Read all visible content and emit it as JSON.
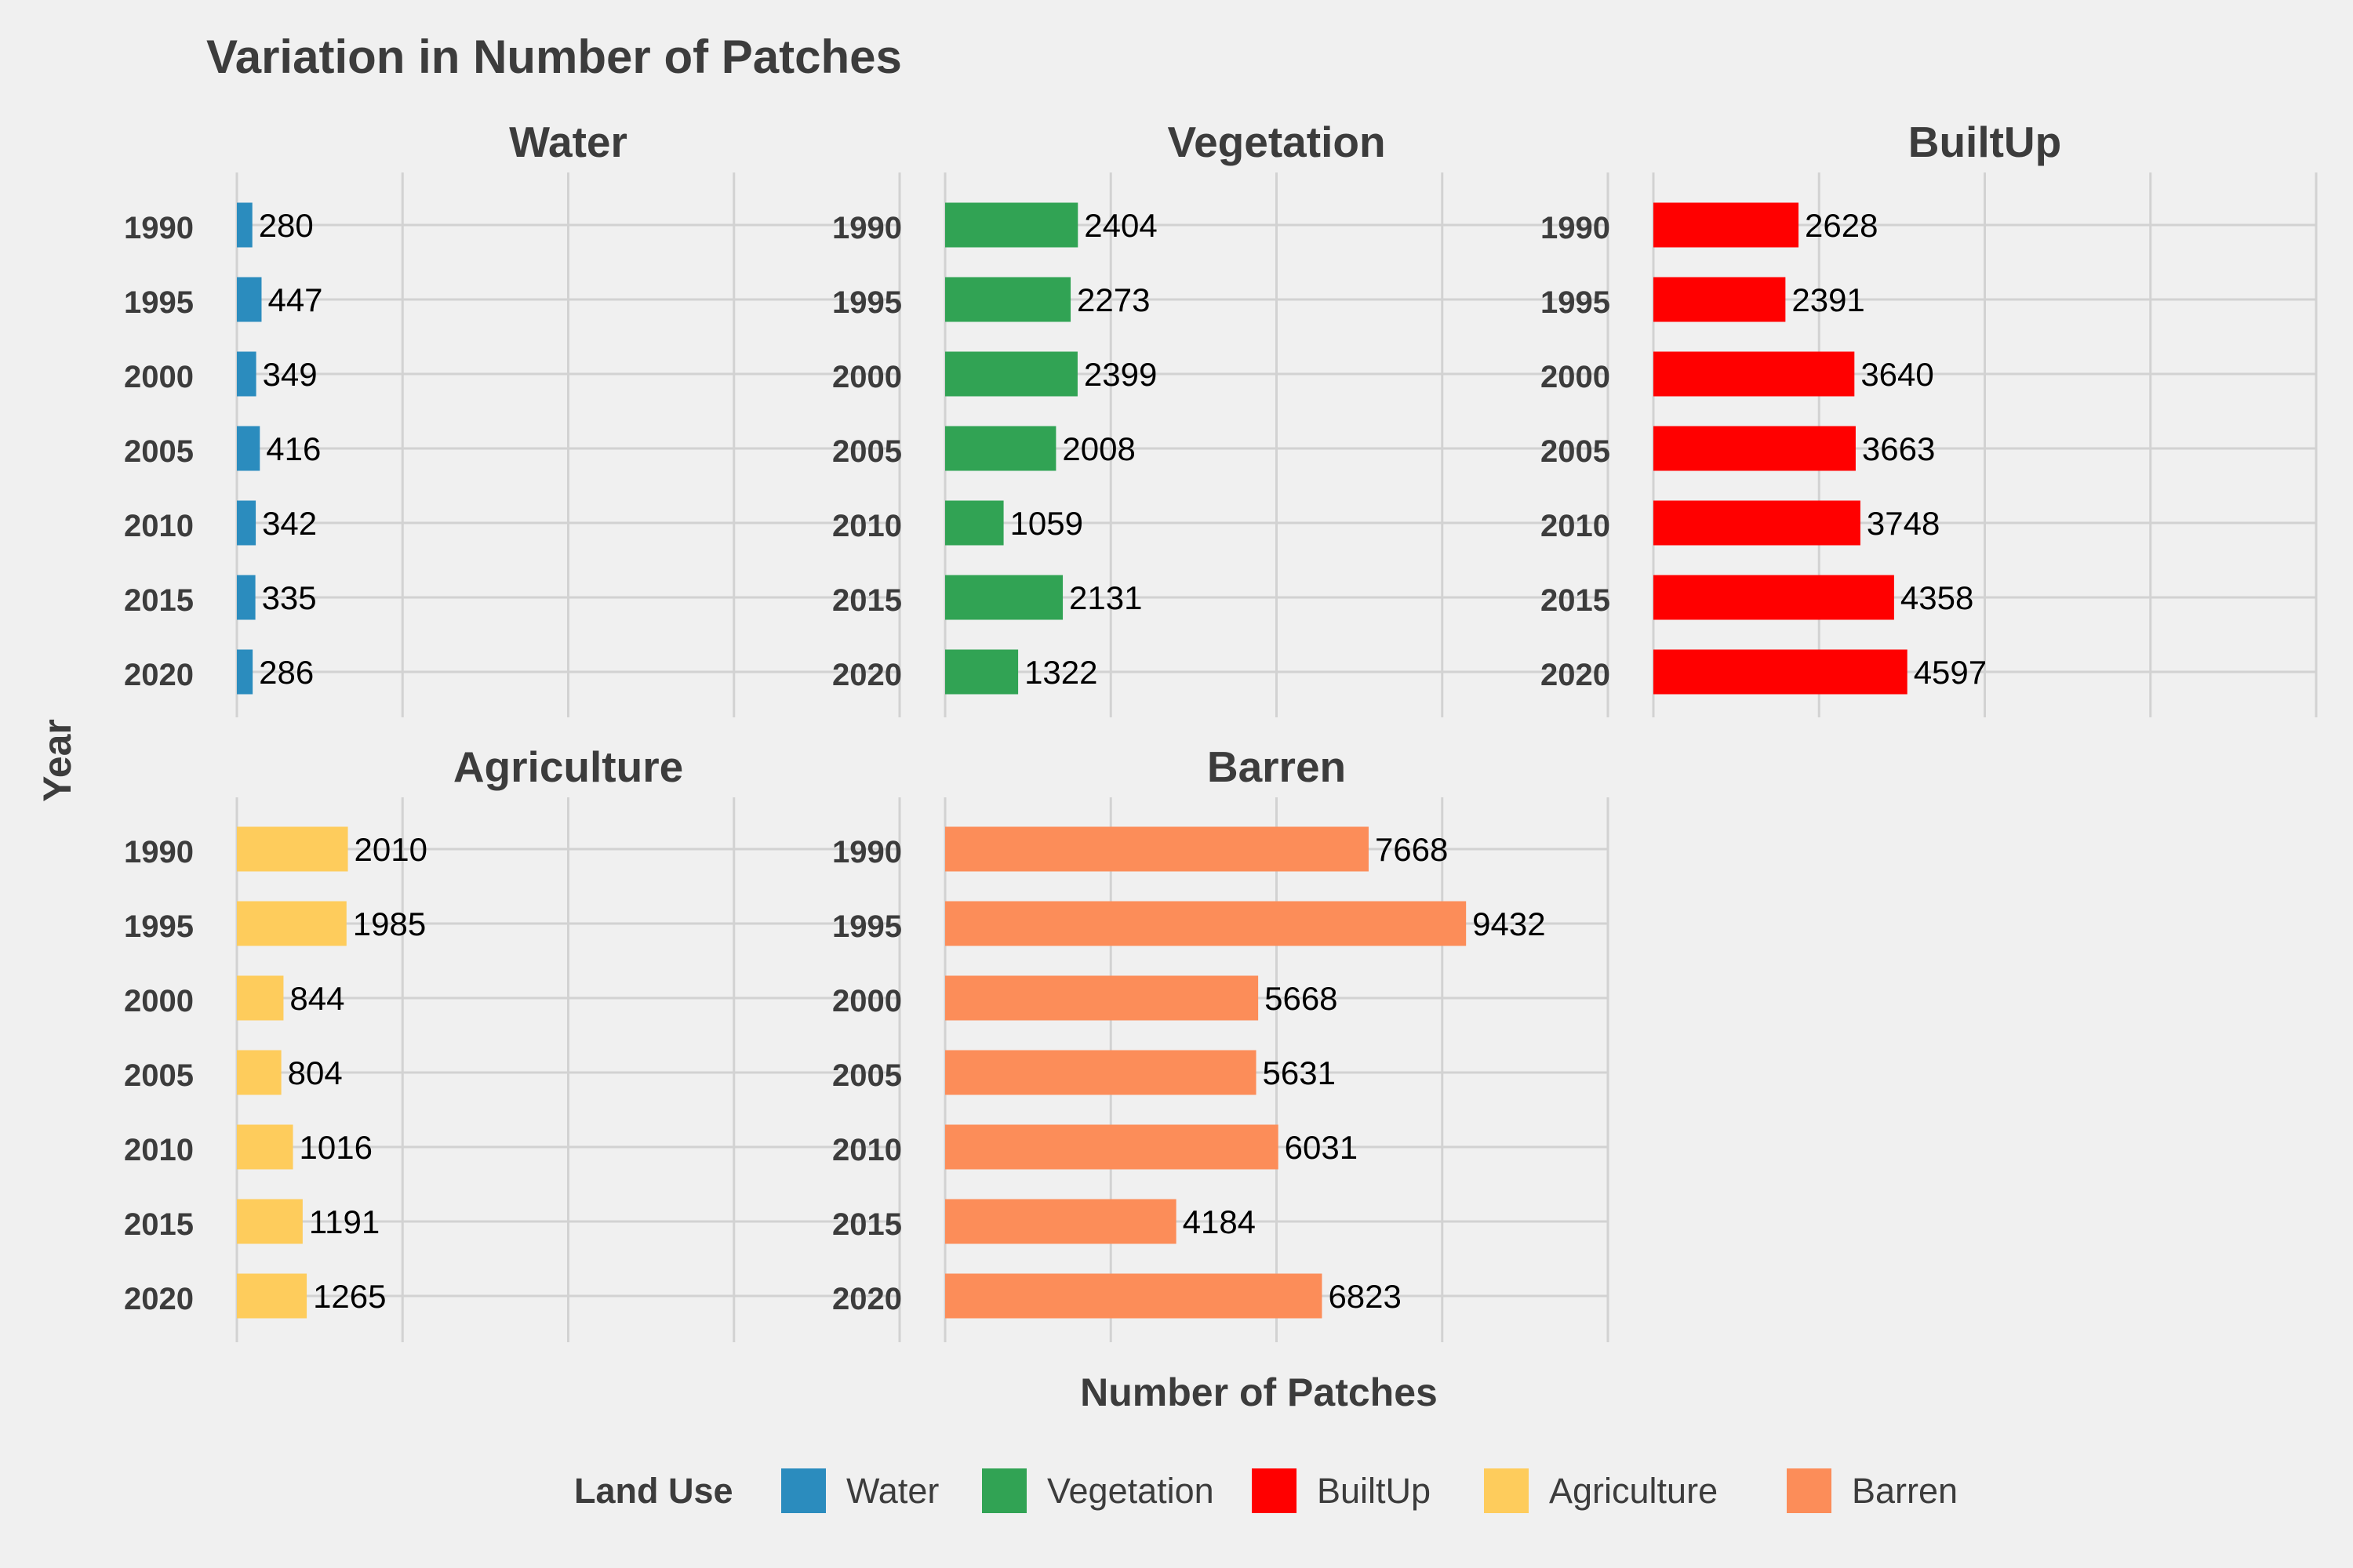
{
  "chart_data": {
    "type": "bar",
    "orientation": "horizontal",
    "title": "Variation in Number of Patches",
    "xlabel": "Number of Patches",
    "ylabel": "Year",
    "categories": [
      "1990",
      "1995",
      "2000",
      "2005",
      "2010",
      "2015",
      "2020"
    ],
    "xlim": [
      0,
      12000
    ],
    "grid": true,
    "legend": {
      "title": "Land Use",
      "position": "bottom",
      "entries": [
        "Water",
        "Vegetation",
        "BuiltUp",
        "Agriculture",
        "Barren"
      ]
    },
    "series": [
      {
        "name": "Water",
        "color": "#2b8cbe",
        "values": [
          280,
          447,
          349,
          416,
          342,
          335,
          286
        ]
      },
      {
        "name": "Vegetation",
        "color": "#31a354",
        "values": [
          2404,
          2273,
          2399,
          2008,
          1059,
          2131,
          1322
        ]
      },
      {
        "name": "BuiltUp",
        "color": "#ff0000",
        "values": [
          2628,
          2391,
          3640,
          3663,
          3748,
          4358,
          4597
        ]
      },
      {
        "name": "Agriculture",
        "color": "#fecc5c",
        "values": [
          2010,
          1985,
          844,
          804,
          1016,
          1191,
          1265
        ]
      },
      {
        "name": "Barren",
        "color": "#fc8d59",
        "values": [
          7668,
          9432,
          5668,
          5631,
          6031,
          4184,
          6823
        ]
      }
    ]
  }
}
